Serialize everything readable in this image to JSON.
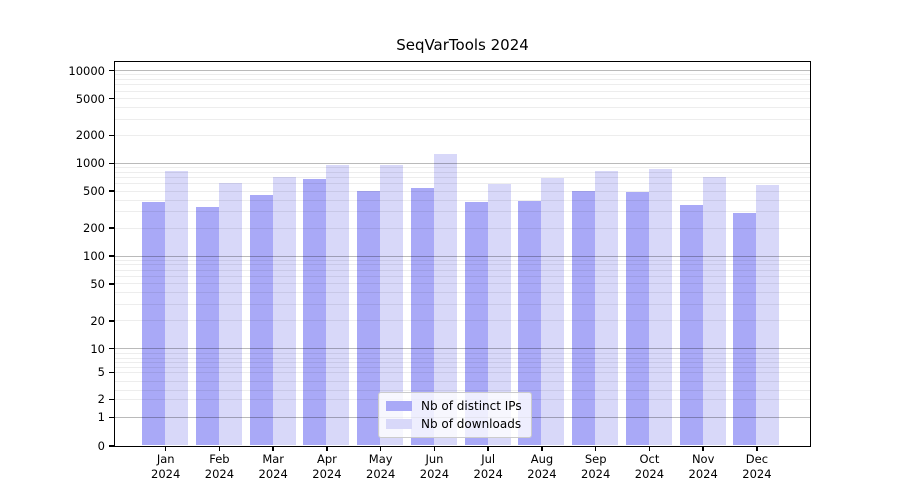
{
  "title": "SeqVarTools 2024",
  "chart_data": {
    "type": "bar",
    "title": "SeqVarTools 2024",
    "categories": [
      "Jan 2024",
      "Feb 2024",
      "Mar 2024",
      "Apr 2024",
      "May 2024",
      "Jun 2024",
      "Jul 2024",
      "Aug 2024",
      "Sep 2024",
      "Oct 2024",
      "Nov 2024",
      "Dec 2024"
    ],
    "series": [
      {
        "name": "Nb of distinct IPs",
        "color": "#a9a9f7",
        "values": [
          378,
          335,
          455,
          670,
          500,
          535,
          378,
          390,
          495,
          490,
          350,
          290
        ]
      },
      {
        "name": "Nb of downloads",
        "color": "#d8d8f9",
        "values": [
          815,
          600,
          705,
          950,
          940,
          1230,
          585,
          680,
          820,
          860,
          700,
          570
        ]
      }
    ],
    "xlabel": "",
    "ylabel": "",
    "yscale": "symlog",
    "yticks": [
      0,
      1,
      2,
      5,
      10,
      20,
      50,
      100,
      200,
      500,
      1000,
      2000,
      5000,
      10000
    ],
    "ylim": [
      0,
      12000
    ],
    "grid": true,
    "legend_position": "lower center",
    "background": "#ffffff",
    "gridline_major_color": "#b8b8b8",
    "gridline_minor_color": "#ececec"
  }
}
